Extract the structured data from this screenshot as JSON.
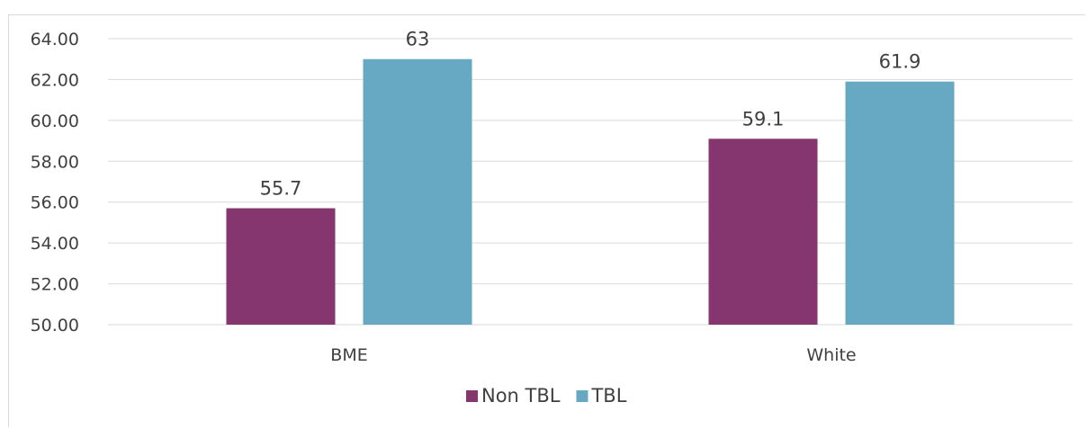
{
  "chart_data": {
    "type": "bar",
    "categories": [
      "BME",
      "White"
    ],
    "series": [
      {
        "name": "Non TBL",
        "values": [
          55.7,
          59.1
        ],
        "color": "#85366f"
      },
      {
        "name": "TBL",
        "values": [
          63,
          61.9
        ],
        "color": "#67a9c2"
      }
    ],
    "data_labels": [
      [
        "55.7",
        "59.1"
      ],
      [
        "63",
        "61.9"
      ]
    ],
    "yticks": [
      "50.00",
      "52.00",
      "54.00",
      "56.00",
      "58.00",
      "60.00",
      "62.00",
      "64.00"
    ],
    "ylim": [
      50,
      64
    ],
    "title": "",
    "xlabel": "",
    "ylabel": "",
    "grid": true,
    "legend_position": "bottom",
    "gridline_color": "#d9d9d9"
  }
}
